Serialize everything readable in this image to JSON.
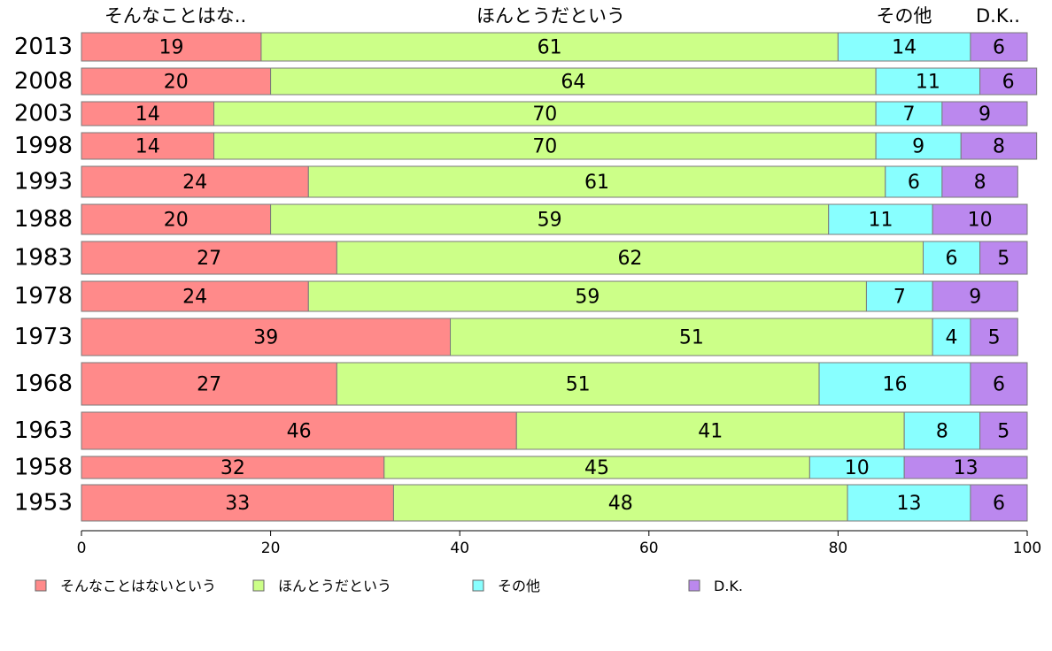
{
  "chart_data": {
    "type": "bar",
    "orientation": "horizontal",
    "stacked": true,
    "categories": [
      "2013",
      "2008",
      "2003",
      "1998",
      "1993",
      "1988",
      "1983",
      "1978",
      "1973",
      "1968",
      "1963",
      "1958",
      "1953"
    ],
    "series": [
      {
        "name": "そんなことはないという",
        "color": "#FF8A8A",
        "values": [
          19,
          20,
          14,
          14,
          24,
          20,
          27,
          24,
          39,
          27,
          46,
          32,
          33
        ]
      },
      {
        "name": "ほんとうだという",
        "color": "#CCFF88",
        "values": [
          61,
          64,
          70,
          70,
          61,
          59,
          62,
          59,
          51,
          51,
          41,
          45,
          48
        ]
      },
      {
        "name": "その他",
        "color": "#88FFFF",
        "values": [
          14,
          11,
          7,
          9,
          6,
          11,
          6,
          7,
          4,
          16,
          8,
          10,
          13
        ]
      },
      {
        "name": "D.K.",
        "color": "#BB88EE",
        "values": [
          6,
          6,
          9,
          8,
          8,
          10,
          5,
          9,
          5,
          6,
          5,
          13,
          6
        ]
      }
    ],
    "top_labels": [
      "そんなことはな..",
      "ほんとうだという",
      "その他",
      "D.K.."
    ],
    "xlim": [
      0,
      100
    ],
    "xticks": [
      "0",
      "20",
      "40",
      "60",
      "80",
      "100"
    ],
    "grid": false,
    "legend_position": "bottom"
  }
}
